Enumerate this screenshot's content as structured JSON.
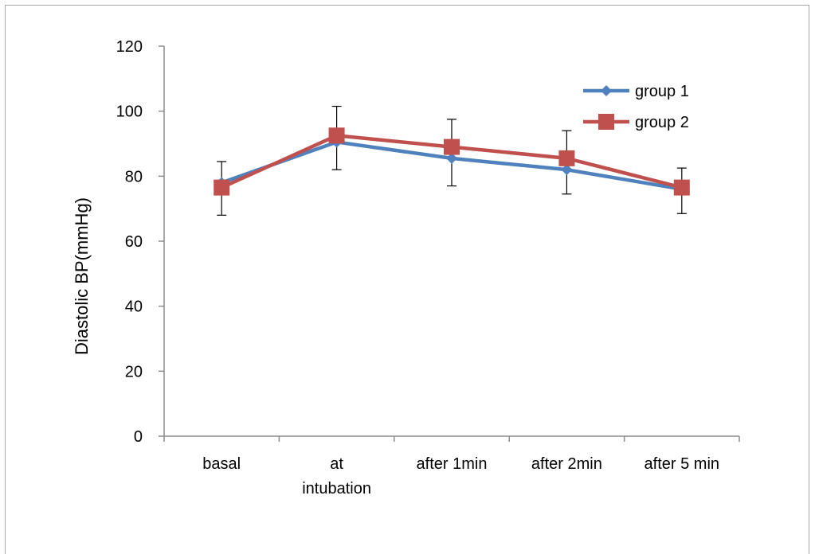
{
  "chart_data": {
    "type": "line",
    "title": "",
    "xlabel": "",
    "ylabel": "Diastolic BP(mmHg)",
    "ylim": [
      0,
      120
    ],
    "yticks": [
      0,
      20,
      40,
      60,
      80,
      100,
      120
    ],
    "grid": false,
    "legend_position": "top-right",
    "categories": [
      [
        "basal"
      ],
      [
        "at",
        "intubation"
      ],
      [
        "after 1min"
      ],
      [
        "after 2min"
      ],
      [
        "after 5 min"
      ]
    ],
    "series": [
      {
        "name": "group 1",
        "color": "#4F81BD",
        "marker": "diamond",
        "values": [
          78,
          90.5,
          85.5,
          82,
          76
        ],
        "error_low": [
          68,
          82,
          77,
          74.5,
          68.5
        ],
        "error_high": [
          84.5,
          101.5,
          97.5,
          94,
          82.5
        ]
      },
      {
        "name": "group 2",
        "color": "#C0504D",
        "marker": "square",
        "values": [
          76.5,
          92.5,
          89,
          85.5,
          76.5
        ],
        "error_low": [],
        "error_high": []
      }
    ]
  }
}
